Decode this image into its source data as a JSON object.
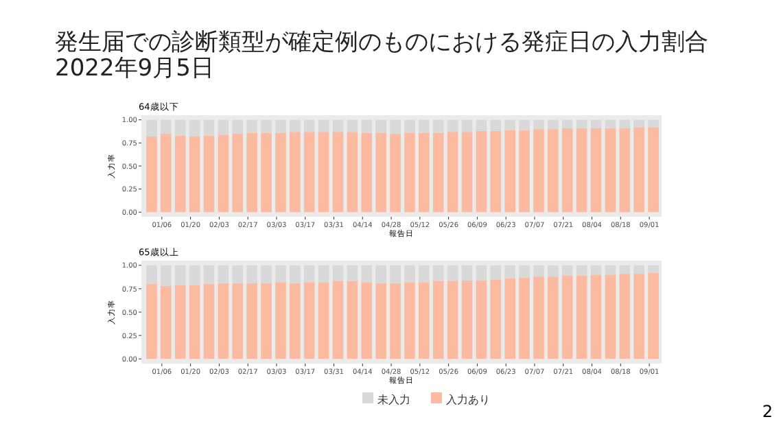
{
  "chart_data": [
    {
      "type": "bar",
      "stacked": true,
      "title": "64歳以下",
      "xlabel": "報告日",
      "ylabel": "入力率",
      "legend": false,
      "annotations": [
        "発生届での診断類型が確定例のものにおける発症日の入力割合",
        "2022年9月5日"
      ],
      "x": [
        "2022-01-01",
        "2022-01-08",
        "2022-01-15",
        "2022-01-22",
        "2022-01-29",
        "2022-02-05",
        "2022-02-12",
        "2022-02-19",
        "2022-02-26",
        "2022-03-05",
        "2022-03-12",
        "2022-03-19",
        "2022-03-26",
        "2022-04-02",
        "2022-04-09",
        "2022-04-16",
        "2022-04-23",
        "2022-04-30",
        "2022-05-07",
        "2022-05-14",
        "2022-05-21",
        "2022-05-28",
        "2022-06-04",
        "2022-06-11",
        "2022-06-18",
        "2022-06-25",
        "2022-07-02",
        "2022-07-09",
        "2022-07-16",
        "2022-07-23",
        "2022-07-30",
        "2022-08-06",
        "2022-08-13",
        "2022-08-20",
        "2022-08-27",
        "2022-09-03"
      ],
      "series": [
        {
          "color": "#fcbba1",
          "values": [
            0.82,
            0.85,
            0.83,
            0.82,
            0.83,
            0.84,
            0.85,
            0.86,
            0.86,
            0.86,
            0.87,
            0.87,
            0.87,
            0.87,
            0.87,
            0.86,
            0.86,
            0.85,
            0.86,
            0.86,
            0.86,
            0.87,
            0.87,
            0.88,
            0.88,
            0.89,
            0.89,
            0.9,
            0.9,
            0.91,
            0.91,
            0.91,
            0.91,
            0.91,
            0.92,
            0.92
          ]
        },
        {
          "color": "#d9d9d9",
          "values": [
            0.18,
            0.15,
            0.17,
            0.18,
            0.17,
            0.16,
            0.15,
            0.14,
            0.14,
            0.14,
            0.13,
            0.13,
            0.13,
            0.13,
            0.13,
            0.14,
            0.14,
            0.15,
            0.14,
            0.14,
            0.14,
            0.13,
            0.13,
            0.12,
            0.12,
            0.11,
            0.11,
            0.1,
            0.1,
            0.09,
            0.09,
            0.09,
            0.09,
            0.09,
            0.08,
            0.08
          ]
        }
      ],
      "xlim": [
        "2021-12-27",
        "2022-09-07"
      ],
      "xticks": [
        {
          "value": "2022-01-06",
          "label": "01/06"
        },
        {
          "value": "2022-01-20",
          "label": "01/20"
        },
        {
          "value": "2022-02-03",
          "label": "02/03"
        },
        {
          "value": "2022-02-17",
          "label": "02/17"
        },
        {
          "value": "2022-03-03",
          "label": "03/03"
        },
        {
          "value": "2022-03-17",
          "label": "03/17"
        },
        {
          "value": "2022-03-31",
          "label": "03/31"
        },
        {
          "value": "2022-04-14",
          "label": "04/14"
        },
        {
          "value": "2022-04-28",
          "label": "04/28"
        },
        {
          "value": "2022-05-12",
          "label": "05/12"
        },
        {
          "value": "2022-05-26",
          "label": "05/26"
        },
        {
          "value": "2022-06-09",
          "label": "06/09"
        },
        {
          "value": "2022-06-23",
          "label": "06/23"
        },
        {
          "value": "2022-07-07",
          "label": "07/07"
        },
        {
          "value": "2022-07-21",
          "label": "07/21"
        },
        {
          "value": "2022-08-04",
          "label": "08/04"
        },
        {
          "value": "2022-08-18",
          "label": "08/18"
        },
        {
          "value": "2022-09-01",
          "label": "09/01"
        }
      ],
      "ylim": [
        -0.05,
        1.05
      ],
      "yticks": [
        {
          "value": 0,
          "label": "0.00"
        },
        {
          "value": 0.25,
          "label": "0.25"
        },
        {
          "value": 0.5,
          "label": "0.50"
        },
        {
          "value": 0.75,
          "label": "0.75"
        },
        {
          "value": 1,
          "label": "1.00"
        }
      ]
    },
    {
      "type": "bar",
      "stacked": true,
      "title": "65歳以上",
      "xlabel": "報告日",
      "ylabel": "入力率",
      "legend": "bottom",
      "annotations": [
        "2"
      ],
      "x": [
        "2022-01-01",
        "2022-01-08",
        "2022-01-15",
        "2022-01-22",
        "2022-01-29",
        "2022-02-05",
        "2022-02-12",
        "2022-02-19",
        "2022-02-26",
        "2022-03-05",
        "2022-03-12",
        "2022-03-19",
        "2022-03-26",
        "2022-04-02",
        "2022-04-09",
        "2022-04-16",
        "2022-04-23",
        "2022-04-30",
        "2022-05-07",
        "2022-05-14",
        "2022-05-21",
        "2022-05-28",
        "2022-06-04",
        "2022-06-11",
        "2022-06-18",
        "2022-06-25",
        "2022-07-02",
        "2022-07-09",
        "2022-07-16",
        "2022-07-23",
        "2022-07-30",
        "2022-08-06",
        "2022-08-13",
        "2022-08-20",
        "2022-08-27",
        "2022-09-03"
      ],
      "series": [
        {
          "name": "入力あり",
          "color": "#fcbba1",
          "values": [
            0.8,
            0.78,
            0.79,
            0.79,
            0.8,
            0.81,
            0.81,
            0.81,
            0.81,
            0.82,
            0.81,
            0.82,
            0.82,
            0.83,
            0.83,
            0.82,
            0.81,
            0.81,
            0.82,
            0.82,
            0.83,
            0.83,
            0.84,
            0.84,
            0.85,
            0.86,
            0.87,
            0.88,
            0.88,
            0.89,
            0.89,
            0.9,
            0.9,
            0.91,
            0.91,
            0.92
          ]
        },
        {
          "name": "未入力",
          "color": "#d9d9d9",
          "values": [
            0.2,
            0.22,
            0.21,
            0.21,
            0.2,
            0.19,
            0.19,
            0.19,
            0.19,
            0.18,
            0.19,
            0.18,
            0.18,
            0.17,
            0.17,
            0.18,
            0.19,
            0.19,
            0.18,
            0.18,
            0.17,
            0.17,
            0.16,
            0.16,
            0.15,
            0.14,
            0.13,
            0.12,
            0.12,
            0.11,
            0.11,
            0.1,
            0.1,
            0.09,
            0.09,
            0.08
          ]
        }
      ],
      "xlim": [
        "2021-12-27",
        "2022-09-07"
      ],
      "xticks": [
        {
          "value": "2022-01-06",
          "label": "01/06"
        },
        {
          "value": "2022-01-20",
          "label": "01/20"
        },
        {
          "value": "2022-02-03",
          "label": "02/03"
        },
        {
          "value": "2022-02-17",
          "label": "02/17"
        },
        {
          "value": "2022-03-03",
          "label": "03/03"
        },
        {
          "value": "2022-03-17",
          "label": "03/17"
        },
        {
          "value": "2022-03-31",
          "label": "03/31"
        },
        {
          "value": "2022-04-14",
          "label": "04/14"
        },
        {
          "value": "2022-04-28",
          "label": "04/28"
        },
        {
          "value": "2022-05-12",
          "label": "05/12"
        },
        {
          "value": "2022-05-26",
          "label": "05/26"
        },
        {
          "value": "2022-06-09",
          "label": "06/09"
        },
        {
          "value": "2022-06-23",
          "label": "06/23"
        },
        {
          "value": "2022-07-07",
          "label": "07/07"
        },
        {
          "value": "2022-07-21",
          "label": "07/21"
        },
        {
          "value": "2022-08-04",
          "label": "08/04"
        },
        {
          "value": "2022-08-18",
          "label": "08/18"
        },
        {
          "value": "2022-09-01",
          "label": "09/01"
        }
      ],
      "ylim": [
        -0.05,
        1.05
      ],
      "yticks": [
        {
          "value": 0,
          "label": "0.00"
        },
        {
          "value": 0.25,
          "label": "0.25"
        },
        {
          "value": 0.5,
          "label": "0.50"
        },
        {
          "value": 0.75,
          "label": "0.75"
        },
        {
          "value": 1,
          "label": "1.00"
        }
      ]
    }
  ]
}
